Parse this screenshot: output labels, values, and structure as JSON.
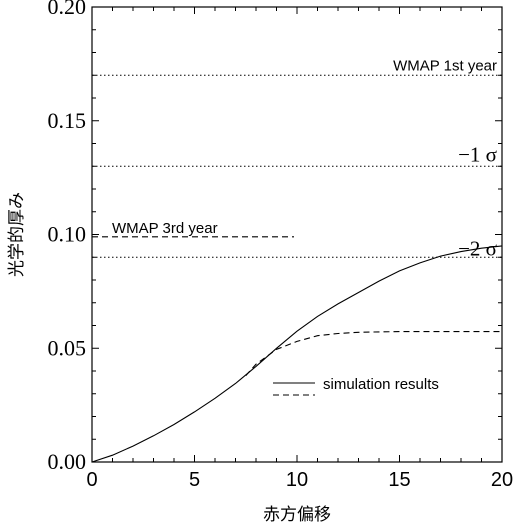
{
  "chart_data": {
    "type": "line",
    "title": "",
    "xlabel": "赤方偏移",
    "ylabel": "光学的厚み",
    "xlim": [
      0,
      20
    ],
    "ylim": [
      0,
      0.2
    ],
    "grid": false,
    "x_ticks": [
      "0",
      "5",
      "10",
      "15",
      "20"
    ],
    "y_ticks": [
      "0.00",
      "0.05",
      "0.10",
      "0.15",
      "0.20"
    ],
    "series": [
      {
        "name": "simulation results",
        "style": "solid",
        "color": "#000000",
        "x": [
          0,
          1,
          2,
          3,
          4,
          5,
          6,
          7,
          8,
          9,
          10,
          11,
          12,
          13,
          14,
          15,
          16,
          17,
          18,
          19,
          20
        ],
        "y": [
          0.0,
          0.003,
          0.007,
          0.0115,
          0.0165,
          0.022,
          0.028,
          0.0345,
          0.042,
          0.05,
          0.0575,
          0.064,
          0.0695,
          0.0745,
          0.0795,
          0.084,
          0.0875,
          0.0905,
          0.0925,
          0.094,
          0.095
        ]
      },
      {
        "name": "",
        "style": "dashed",
        "color": "#000000",
        "x": [
          7.5,
          8,
          9,
          10,
          11,
          12,
          13,
          14,
          15,
          16,
          17,
          18,
          19,
          20
        ],
        "y": [
          0.038,
          0.043,
          0.0495,
          0.053,
          0.0555,
          0.0565,
          0.057,
          0.0572,
          0.0573,
          0.0573,
          0.0573,
          0.0573,
          0.0573,
          0.0573
        ]
      }
    ],
    "reference_lines": [
      {
        "label": "WMAP 1st year",
        "y": 0.17,
        "style": "dotted",
        "x_from": 0,
        "x_to": 20
      },
      {
        "label": "−1 σ",
        "y": 0.13,
        "style": "dotted",
        "x_from": 0,
        "x_to": 20
      },
      {
        "label": "WMAP 3rd year",
        "y": 0.099,
        "style": "dashed",
        "x_from": 0,
        "x_to": 10
      },
      {
        "label": "−2 σ",
        "y": 0.09,
        "style": "dotted",
        "x_from": 0,
        "x_to": 20
      }
    ],
    "legend": {
      "position": "lower-right",
      "entries": [
        {
          "label": "simulation results",
          "style": "solid"
        },
        {
          "label": "",
          "style": "dashed"
        }
      ]
    }
  }
}
